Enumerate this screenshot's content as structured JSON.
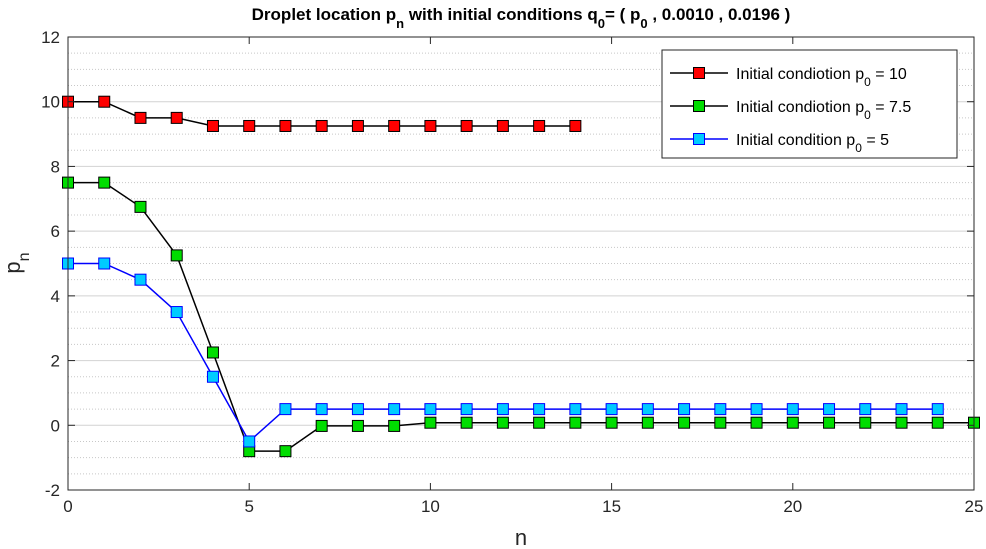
{
  "chart_data": {
    "type": "line",
    "title": {
      "parts": [
        {
          "text": "Droplet location p",
          "sub": false
        },
        {
          "text": "n",
          "sub": true
        },
        {
          "text": " with initial conditions q",
          "sub": false
        },
        {
          "text": "0",
          "sub": true
        },
        {
          "text": "= ( p",
          "sub": false
        },
        {
          "text": "0",
          "sub": true
        },
        {
          "text": " , 0.0010 , 0.0196 )",
          "sub": false
        }
      ]
    },
    "xlabel": "n",
    "ylabel": {
      "main": "p",
      "sub": "n"
    },
    "xlim": [
      0,
      25
    ],
    "ylim": [
      -2,
      12
    ],
    "xticks": [
      0,
      5,
      10,
      15,
      20,
      25
    ],
    "yticks": [
      -2,
      0,
      2,
      4,
      6,
      8,
      10,
      12
    ],
    "grid": "major and minor horizontal",
    "legend_position": "top-right",
    "series": [
      {
        "legend": {
          "prefix": "Initial condiotion p",
          "sub": "0",
          "suffix": " = 10"
        },
        "line_color": "#000000",
        "marker_color": "#ff0000",
        "x": [
          0,
          1,
          2,
          3,
          4,
          5,
          6,
          7,
          8,
          9,
          10,
          11,
          12,
          13,
          14
        ],
        "y": [
          10,
          10,
          9.5,
          9.5,
          9.25,
          9.25,
          9.25,
          9.25,
          9.25,
          9.25,
          9.25,
          9.25,
          9.25,
          9.25,
          9.25
        ]
      },
      {
        "legend": {
          "prefix": "Initial condiotion p",
          "sub": "0",
          "suffix": " = 7.5"
        },
        "line_color": "#000000",
        "marker_color": "#00dd00",
        "x": [
          0,
          1,
          2,
          3,
          4,
          5,
          6,
          7,
          8,
          9,
          10,
          11,
          12,
          13,
          14,
          15,
          16,
          17,
          18,
          19,
          20,
          21,
          22,
          23,
          24,
          25
        ],
        "y": [
          7.5,
          7.5,
          6.75,
          5.25,
          2.25,
          -0.8,
          -0.8,
          -0.02,
          -0.02,
          -0.02,
          0.08,
          0.08,
          0.08,
          0.08,
          0.08,
          0.08,
          0.08,
          0.08,
          0.08,
          0.08,
          0.08,
          0.08,
          0.08,
          0.08,
          0.08,
          0.08
        ]
      },
      {
        "legend": {
          "prefix": "Initial condition p",
          "sub": "0",
          "suffix": " = 5"
        },
        "line_color": "#0000ff",
        "marker_color": "#00ccff",
        "x": [
          0,
          1,
          2,
          3,
          4,
          5,
          6,
          7,
          8,
          9,
          10,
          11,
          12,
          13,
          14,
          15,
          16,
          17,
          18,
          19,
          20,
          21,
          22,
          23,
          24
        ],
        "y": [
          5,
          5,
          4.5,
          3.5,
          1.5,
          -0.5,
          0.5,
          0.5,
          0.5,
          0.5,
          0.5,
          0.5,
          0.5,
          0.5,
          0.5,
          0.5,
          0.5,
          0.5,
          0.5,
          0.5,
          0.5,
          0.5,
          0.5,
          0.5,
          0.5
        ]
      }
    ]
  }
}
